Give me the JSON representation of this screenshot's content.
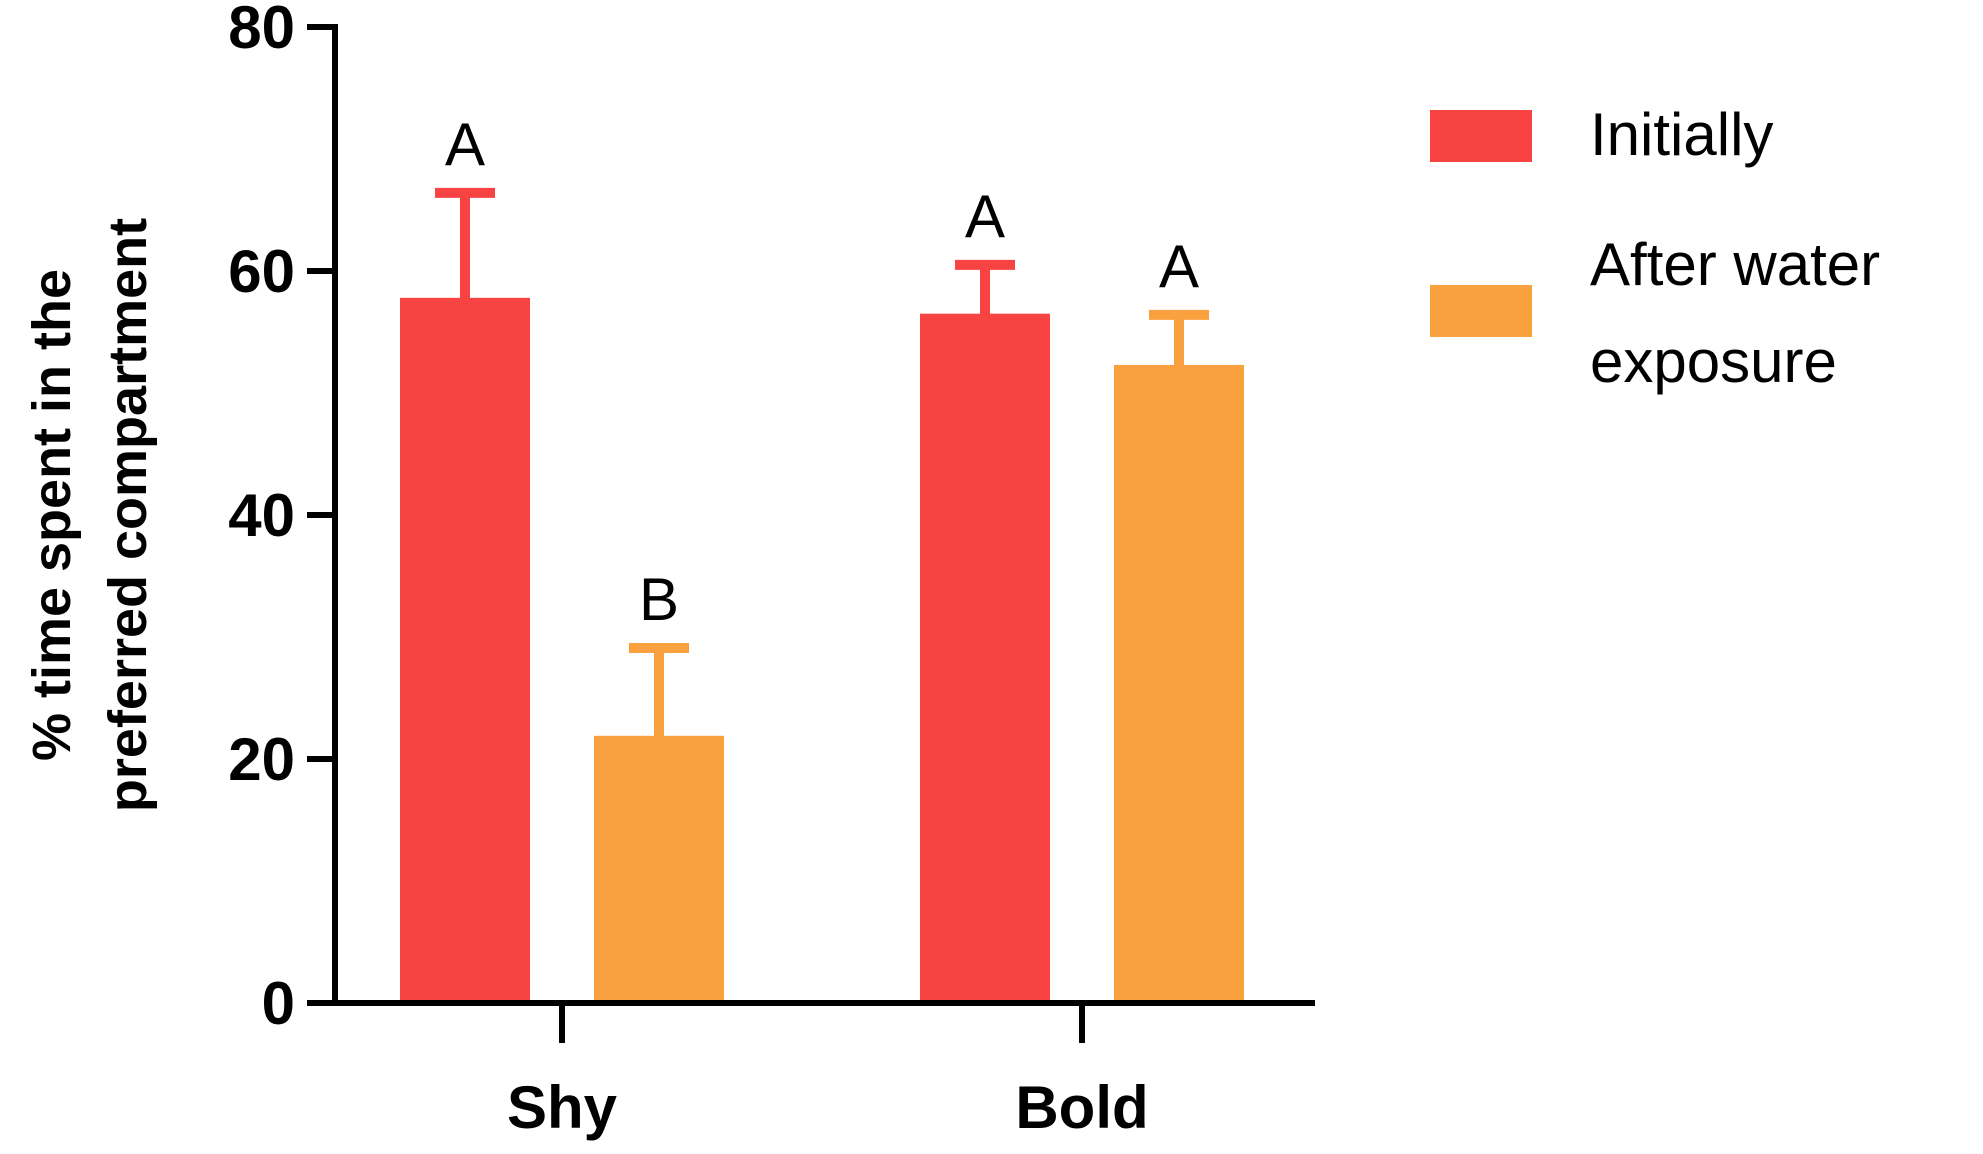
{
  "chart_data": {
    "type": "bar",
    "title": "",
    "xlabel": "",
    "ylabel_lines": [
      "% time spent in the",
      "preferred compartment"
    ],
    "categories": [
      "Shy",
      "Bold"
    ],
    "ylim": [
      0,
      80
    ],
    "yticks": [
      "0",
      "20",
      "40",
      "60",
      "80"
    ],
    "grid": false,
    "legend_position": "right",
    "series": [
      {
        "name": "Initially",
        "color": "#f84343",
        "values": [
          57.8,
          56.5
        ],
        "errors": [
          8.6,
          4.0
        ],
        "significance": [
          "A",
          "A"
        ]
      },
      {
        "name": "After water exposure",
        "legend_lines": [
          "After water",
          "exposure"
        ],
        "color": "#f9a13e",
        "values": [
          21.9,
          52.3
        ],
        "errors": [
          7.2,
          4.1
        ],
        "significance": [
          "B",
          "A"
        ]
      }
    ]
  }
}
